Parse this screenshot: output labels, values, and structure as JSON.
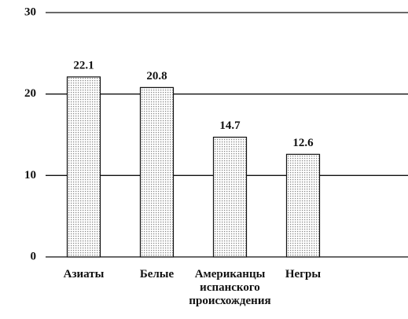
{
  "chart_data": {
    "type": "bar",
    "categories": [
      "Азиаты",
      "Белые",
      "Американцы испанского происхождения",
      "Негры"
    ],
    "values": [
      22.1,
      20.8,
      14.7,
      12.6
    ],
    "color": "#888888",
    "ylim": [
      0,
      30
    ],
    "yticks": [
      0,
      10,
      20,
      30
    ],
    "grid": true
  }
}
